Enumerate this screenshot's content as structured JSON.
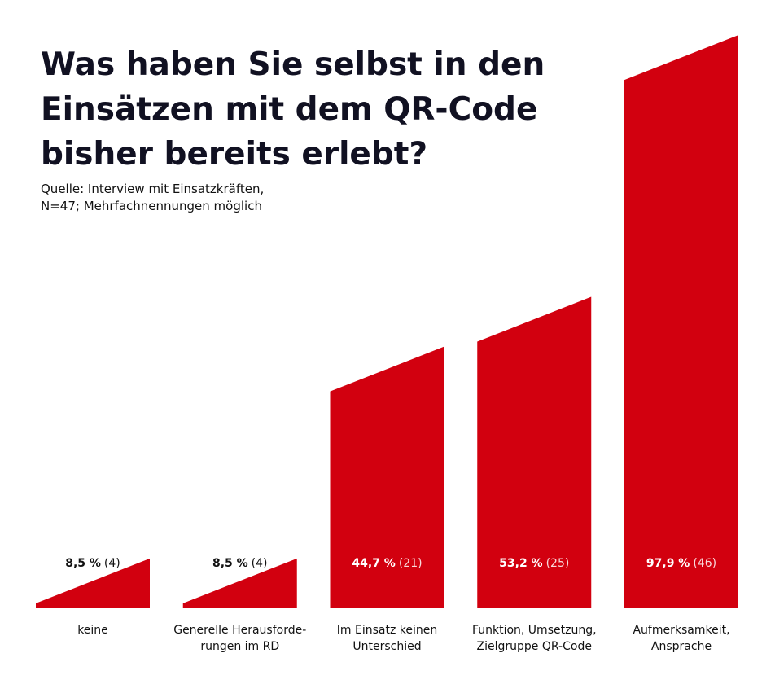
{
  "chart_data": {
    "type": "bar",
    "title": "Was haben Sie selbst in den\nEinsätzen mit dem QR-Code\nbisher bereits erlebt?",
    "subtitle": "Quelle: Interview mit Einsatzkräften,\nN=47; Mehrfachnennungen möglich",
    "categories": [
      "keine",
      "Generelle Herausforde-\nrungen im RD",
      "Im Einsatz keinen\nUnterschied",
      "Funktion, Umsetzung,\nZielgruppe QR-Code",
      "Aufmerksamkeit,\nAnsprache"
    ],
    "values": [
      8.5,
      8.5,
      44.7,
      53.2,
      97.9
    ],
    "value_labels": [
      "8,5 %",
      "8,5 %",
      "44,7 %",
      "53,2 %",
      "97,9 %"
    ],
    "counts": [
      4,
      4,
      21,
      25,
      46
    ],
    "count_labels": [
      "(4)",
      "(4)",
      "(21)",
      "(25)",
      "(46)"
    ],
    "color": "#d2000f",
    "ylim": [
      0,
      100
    ]
  }
}
